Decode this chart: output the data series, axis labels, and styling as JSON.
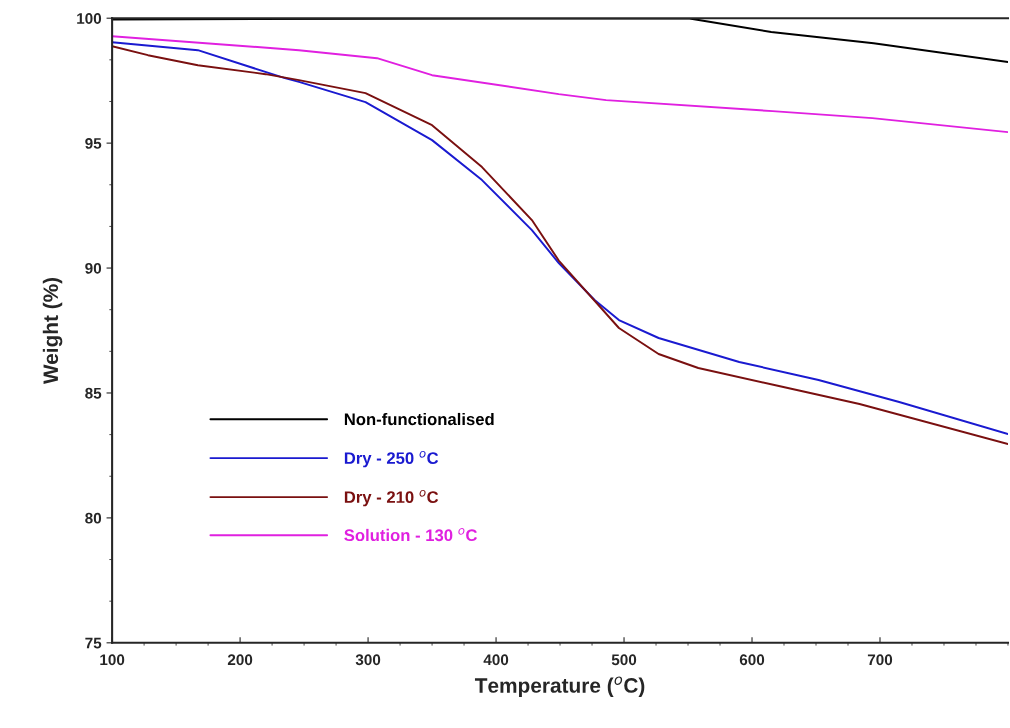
{
  "chart_data": {
    "type": "line",
    "xlabel": "Temperature ($^{o}$C)",
    "ylabel": "Weight (%)",
    "xlim": [
      100,
      800
    ],
    "xticks": [
      100,
      200,
      300,
      400,
      500,
      600,
      700
    ],
    "ylim": [
      75,
      100
    ],
    "yticks": [
      75,
      80,
      85,
      90,
      95,
      100
    ],
    "grid": false,
    "legend": "bottom left",
    "marker": "none",
    "line_style": "solid",
    "series": [
      {
        "name": "Non-functionalised",
        "color": "#000000",
        "x": [
          100,
          550,
          615,
          695,
          800
        ],
        "values": [
          99.95,
          100,
          99.45,
          99.0,
          98.25
        ]
      },
      {
        "name": "Dry - 250 $^{o}$C",
        "color": "#1a1ad0",
        "x": [
          100,
          167,
          235,
          246,
          298,
          350,
          389,
          428,
          449,
          477,
          496,
          527,
          590,
          652,
          715,
          800
        ],
        "values": [
          99.04,
          98.72,
          97.6,
          97.45,
          96.64,
          95.12,
          93.52,
          91.52,
          90.2,
          88.72,
          87.92,
          87.2,
          86.24,
          85.52,
          84.64,
          83.36
        ]
      },
      {
        "name": "Dry - 210 $^{o}$C",
        "color": "#7a1010",
        "x": [
          100,
          128,
          167,
          220,
          246,
          298,
          350,
          389,
          428,
          449,
          496,
          527,
          558,
          621,
          684,
          800
        ],
        "values": [
          98.88,
          98.52,
          98.12,
          97.76,
          97.52,
          97.0,
          95.72,
          94.04,
          91.92,
          90.3,
          87.6,
          86.56,
          86.0,
          85.28,
          84.56,
          82.96
        ]
      },
      {
        "name": "Solution - 130 $^{o}$C",
        "color": "#e020e0",
        "x": [
          100,
          246,
          307,
          350,
          449,
          486,
          616,
          694,
          800
        ],
        "values": [
          99.28,
          98.72,
          98.4,
          97.72,
          96.96,
          96.72,
          96.28,
          96.0,
          95.44
        ]
      }
    ]
  }
}
